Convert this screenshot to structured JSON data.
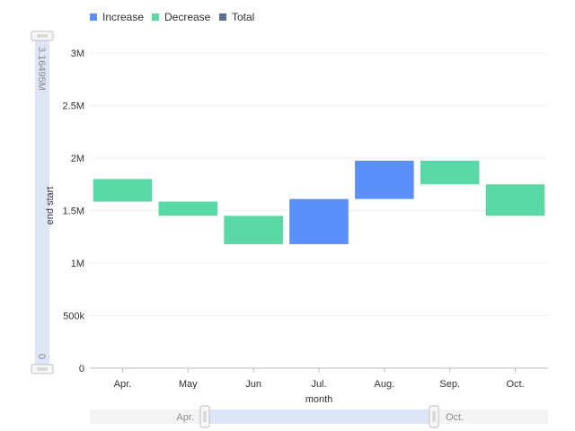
{
  "chart_data": {
    "type": "bar",
    "subtype": "waterfall",
    "xlabel": "month",
    "ylabel": "end start",
    "categories": [
      "Apr.",
      "May",
      "Jun",
      "Jul.",
      "Aug.",
      "Sep.",
      "Oct."
    ],
    "series": [
      {
        "name": "Increase",
        "start": [
          null,
          null,
          null,
          1180000,
          1610000,
          null,
          null
        ],
        "end": [
          null,
          null,
          null,
          1610000,
          1975000,
          null,
          null
        ]
      },
      {
        "name": "Decrease",
        "start": [
          1800000,
          1585000,
          1450000,
          null,
          null,
          1975000,
          1750000
        ],
        "end": [
          1585000,
          1450000,
          1180000,
          null,
          null,
          1750000,
          1450000
        ]
      },
      {
        "name": "Total",
        "start": [],
        "end": []
      }
    ],
    "ylim": [
      0,
      3000000
    ],
    "y_ticks": [
      {
        "value": 0,
        "label": "0"
      },
      {
        "value": 500000,
        "label": "500k"
      },
      {
        "value": 1000000,
        "label": "1M"
      },
      {
        "value": 1500000,
        "label": "1.5M"
      },
      {
        "value": 2000000,
        "label": "2M"
      },
      {
        "value": 2500000,
        "label": "2.5M"
      },
      {
        "value": 3000000,
        "label": "3M"
      }
    ],
    "grid": true,
    "legend_position": "top-left",
    "colors": {
      "Increase": "#5B8FF9",
      "Decrease": "#5AD8A6",
      "Total": "#5D7092"
    }
  },
  "y_slider": {
    "max_label": "3.16495M",
    "min_label": "0"
  },
  "x_slider": {
    "start_label": "Apr.",
    "end_label": "Oct."
  }
}
